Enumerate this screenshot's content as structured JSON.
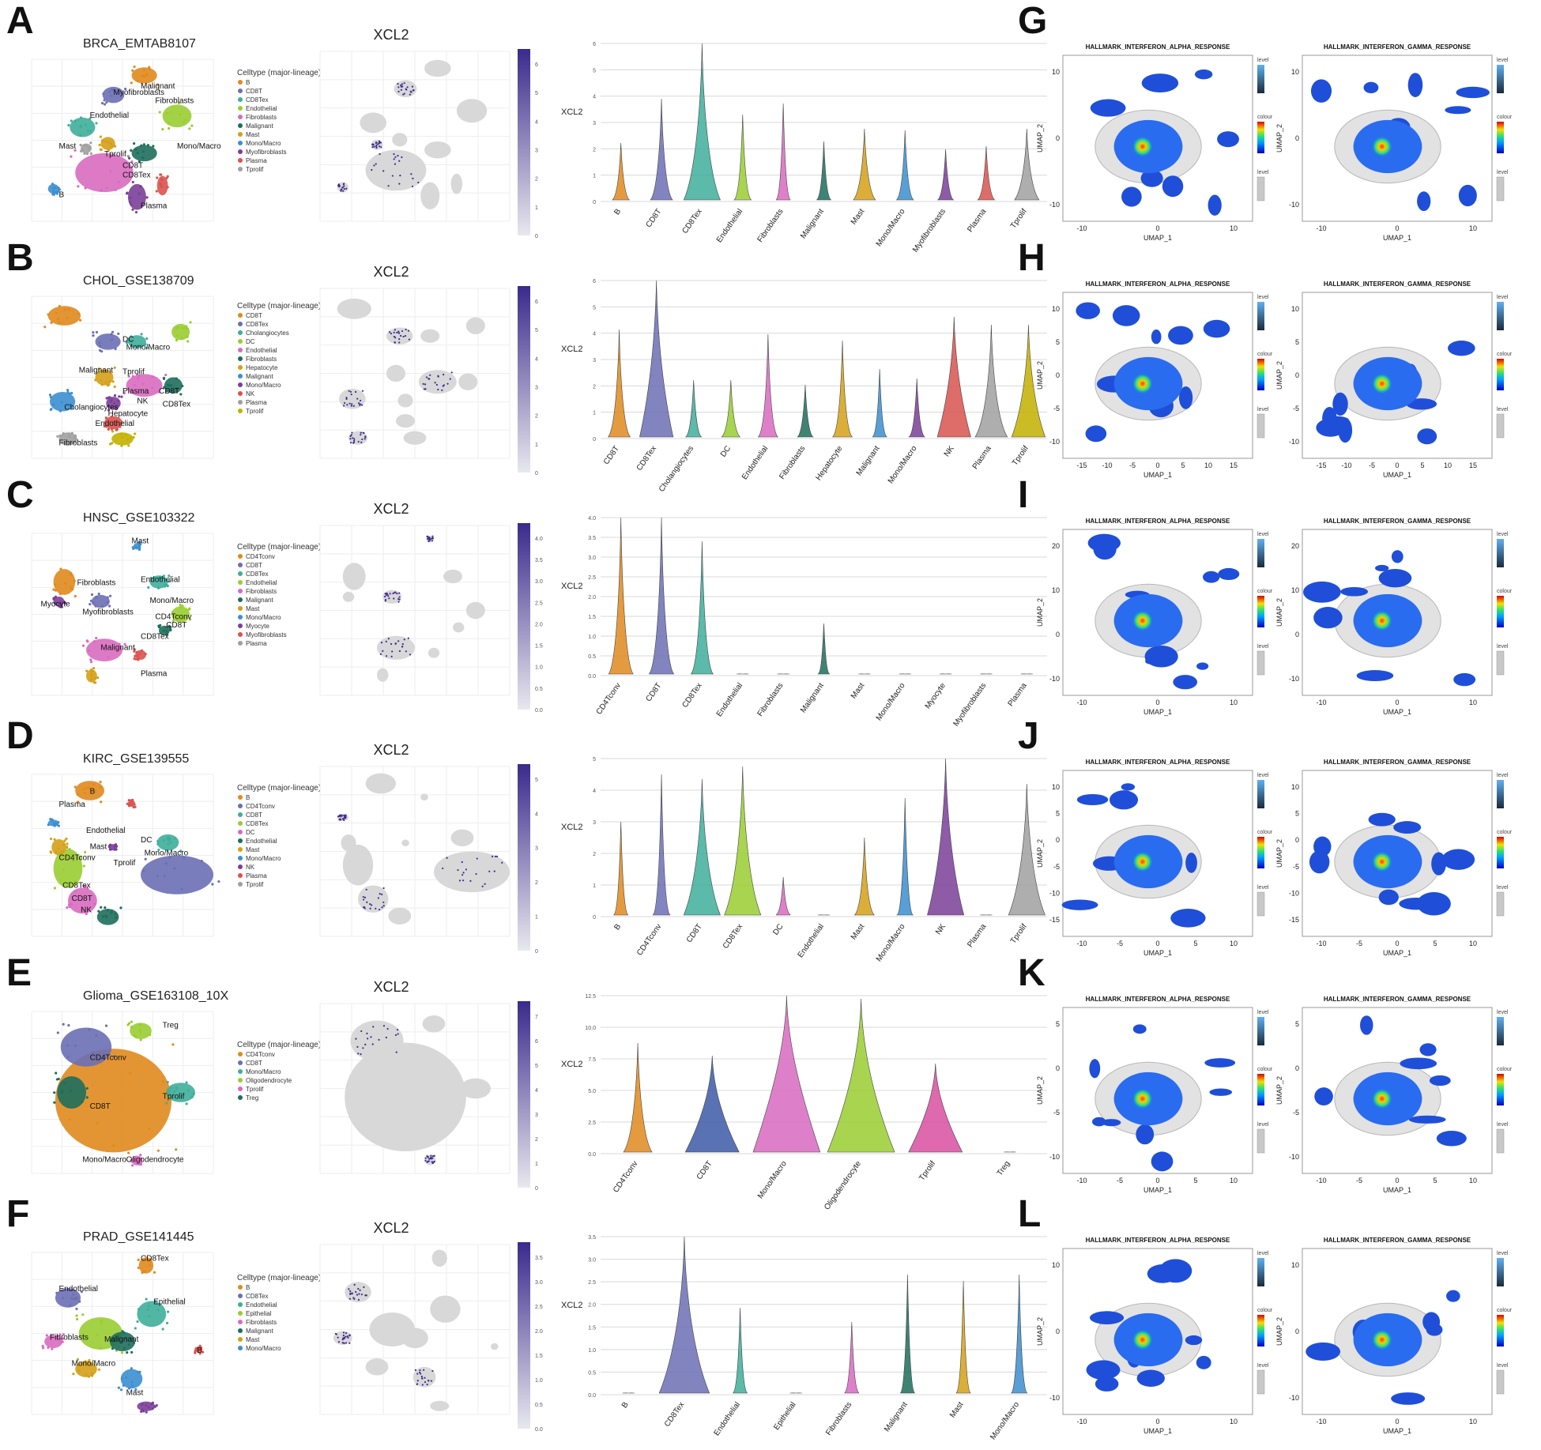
{
  "rows": [
    {
      "letter": "A",
      "dataset": "BRCA_EMTAB8107",
      "gene": "XCL2",
      "legend_title": "Celltype (major-lineage)",
      "celltypes": [
        "B",
        "CD8T",
        "CD8Tex",
        "Endothelial",
        "Fibroblasts",
        "Malignant",
        "Mast",
        "Mono/Macro",
        "Myofibroblasts",
        "Plasma",
        "Tprolif"
      ],
      "umap_labels": [
        "Myofibroblasts",
        "Malignant",
        "Endothelial",
        "Fibroblasts",
        "Mast",
        "Tprolif",
        "CD8T",
        "CD8Tex",
        "Mono/Macro",
        "B",
        "Plasma"
      ],
      "colorbar_ticks": [
        "0",
        "1",
        "2",
        "3",
        "4",
        "5",
        "6"
      ],
      "violin_yticks": [
        "0",
        "1",
        "2",
        "3",
        "4",
        "5",
        "6"
      ],
      "violin_ylabel": "XCL2"
    },
    {
      "letter": "B",
      "dataset": "CHOL_GSE138709",
      "gene": "XCL2",
      "legend_title": "Celltype (major-lineage)",
      "celltypes": [
        "CD8T",
        "CD8Tex",
        "Cholangiocytes",
        "DC",
        "Endothelial",
        "Fibroblasts",
        "Hepatocyte",
        "Malignant",
        "Mono/Macro",
        "NK",
        "Plasma",
        "Tprolif"
      ],
      "umap_labels": [
        "DC",
        "Mono/Macro",
        "Malignant",
        "Tprolif",
        "Plasma",
        "CD8T",
        "NK",
        "CD8Tex",
        "Cholangiocytes",
        "Hepatocyte",
        "Endothelial",
        "Fibroblasts"
      ],
      "colorbar_ticks": [
        "0",
        "1",
        "2",
        "3",
        "4",
        "5",
        "6"
      ],
      "violin_yticks": [
        "0",
        "1",
        "2",
        "3",
        "4",
        "5",
        "6"
      ],
      "violin_ylabel": "XCL2"
    },
    {
      "letter": "C",
      "dataset": "HNSC_GSE103322",
      "gene": "XCL2",
      "legend_title": "Celltype (major-lineage)",
      "celltypes": [
        "CD4Tconv",
        "CD8T",
        "CD8Tex",
        "Endothelial",
        "Fibroblasts",
        "Malignant",
        "Mast",
        "Mono/Macro",
        "Myocyte",
        "Myofibroblasts",
        "Plasma"
      ],
      "umap_labels": [
        "Mast",
        "Fibroblasts",
        "Endothelial",
        "Myocyte",
        "Mono/Macro",
        "Myofibroblasts",
        "CD4Tconv",
        "CD8T",
        "CD8Tex",
        "Malignant",
        "Plasma"
      ],
      "colorbar_ticks": [
        "0.0",
        "0.5",
        "1.0",
        "1.5",
        "2.0",
        "2.5",
        "3.0",
        "3.5",
        "4.0"
      ],
      "violin_yticks": [
        "0.0",
        "0.5",
        "1.0",
        "1.5",
        "2.0",
        "2.5",
        "3.0",
        "3.5",
        "4.0"
      ],
      "violin_ylabel": "XCL2"
    },
    {
      "letter": "D",
      "dataset": "KIRC_GSE139555",
      "gene": "XCL2",
      "legend_title": "Celltype (major-lineage)",
      "celltypes": [
        "B",
        "CD4Tconv",
        "CD8T",
        "CD8Tex",
        "DC",
        "Endothelial",
        "Mast",
        "Mono/Macro",
        "NK",
        "Plasma",
        "Tprolif"
      ],
      "umap_labels": [
        "B",
        "Plasma",
        "Endothelial",
        "DC",
        "Mast",
        "Mono/Macro",
        "CD4Tconv",
        "Tprolif",
        "CD8Tex",
        "CD8T",
        "NK"
      ],
      "colorbar_ticks": [
        "0",
        "1",
        "2",
        "3",
        "4",
        "5"
      ],
      "violin_yticks": [
        "0",
        "1",
        "2",
        "3",
        "4",
        "5"
      ],
      "violin_ylabel": "XCL2"
    },
    {
      "letter": "E",
      "dataset": "Glioma_GSE163108_10X",
      "gene": "XCL2",
      "legend_title": "Celltype (major-lineage)",
      "celltypes": [
        "CD4Tconv",
        "CD8T",
        "Mono/Macro",
        "Oligodendrocyte",
        "Tprolif",
        "Treg"
      ],
      "umap_labels": [
        "Treg",
        "CD4Tconv",
        "Tprolif",
        "CD8T",
        "Mono/Macro",
        "Oligodendrocyte"
      ],
      "colorbar_ticks": [
        "0",
        "1",
        "2",
        "3",
        "4",
        "5",
        "6",
        "7"
      ],
      "violin_yticks": [
        "0.0",
        "2.5",
        "5.0",
        "7.5",
        "10.0",
        "12.5"
      ],
      "violin_ylabel": "XCL2"
    },
    {
      "letter": "F",
      "dataset": "PRAD_GSE141445",
      "gene": "XCL2",
      "legend_title": "Celltype (major-lineage)",
      "celltypes": [
        "B",
        "CD8Tex",
        "Endothelial",
        "Epithelial",
        "Fibroblasts",
        "Malignant",
        "Mast",
        "Mono/Macro"
      ],
      "umap_labels": [
        "CD8Tex",
        "Endothelial",
        "Epithelial",
        "Fibroblasts",
        "Malignant",
        "B",
        "Mono/Macro",
        "Mast"
      ],
      "colorbar_ticks": [
        "0.0",
        "0.5",
        "1.0",
        "1.5",
        "2.0",
        "2.5",
        "3.0",
        "3.5"
      ],
      "violin_yticks": [
        "0.0",
        "0.5",
        "1.0",
        "1.5",
        "2.0",
        "2.5",
        "3.0",
        "3.5"
      ],
      "violin_ylabel": "XCL2"
    }
  ],
  "hallmark": {
    "alpha_title": "HALLMARK_INTERFERON_ALPHA_RESPONSE",
    "gamma_title": "HALLMARK_INTERFERON_GAMMA_RESPONSE",
    "xlabel": "UMAP_1",
    "ylabel": "UMAP_2",
    "legend_level": "level",
    "legend_colour": "colour",
    "rows": [
      {
        "letter": "G",
        "xticks": [
          "-10",
          "0",
          "10"
        ],
        "yticks": [
          "10",
          "0",
          "-10"
        ]
      },
      {
        "letter": "H",
        "xticks": [
          "-15",
          "-10",
          "-5",
          "0",
          "5",
          "10",
          "15"
        ],
        "yticks": [
          "10",
          "5",
          "0",
          "-5",
          "-10"
        ]
      },
      {
        "letter": "I",
        "xticks": [
          "-10",
          "0",
          "10"
        ],
        "yticks": [
          "20",
          "10",
          "0",
          "-10"
        ]
      },
      {
        "letter": "J",
        "xticks": [
          "-10",
          "-5",
          "0",
          "5",
          "10"
        ],
        "yticks": [
          "10",
          "5",
          "0",
          "-5",
          "-10",
          "-15"
        ]
      },
      {
        "letter": "K",
        "xticks": [
          "-10",
          "-5",
          "0",
          "5",
          "10"
        ],
        "yticks": [
          "5",
          "0",
          "-5",
          "-10"
        ]
      },
      {
        "letter": "L",
        "xticks": [
          "-10",
          "0",
          "10"
        ],
        "yticks": [
          "10",
          "0",
          "-10"
        ]
      }
    ]
  },
  "colors": {
    "palette": [
      "#E08A1E",
      "#6C6FB4",
      "#3FAE9B",
      "#9ACD32",
      "#D96BC0",
      "#1E6E5C",
      "#D4A017",
      "#3C8FD0",
      "#7B3F98",
      "#D9534F",
      "#A0A0A0",
      "#C2B100"
    ],
    "xcl2_high": "#3F2B8C",
    "background_grey": "#D8D8D8"
  }
}
